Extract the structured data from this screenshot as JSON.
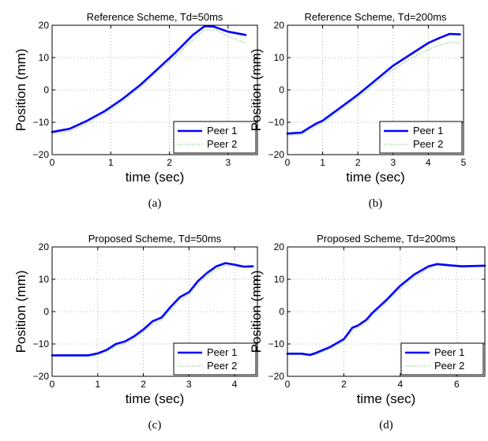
{
  "colors": {
    "peer1": "#0000ff",
    "peer2": "#6bbf6b",
    "grid": "#9a9a9a"
  },
  "legend": {
    "peer1": "Peer 1",
    "peer2": "Peer 2",
    "placement": "bottom-right"
  },
  "chart_data": [
    {
      "type": "line",
      "caption": "(a)",
      "title": "Reference Scheme, Td=50ms",
      "xlabel": "time (sec)",
      "ylabel": "Position (mm)",
      "xlim": [
        0,
        3.5
      ],
      "ylim": [
        -20,
        20
      ],
      "xticks": [
        0,
        1,
        2,
        3
      ],
      "yticks": [
        -20,
        -10,
        0,
        10,
        20
      ],
      "grid": true,
      "series": [
        {
          "name": "Peer 1",
          "x": [
            0,
            0.3,
            0.6,
            0.9,
            1.2,
            1.5,
            1.8,
            2.1,
            2.4,
            2.6,
            2.75,
            3.0,
            3.3
          ],
          "y": [
            -13,
            -12,
            -9.5,
            -6.5,
            -2.8,
            1.5,
            6.5,
            11.5,
            17,
            19.7,
            19.6,
            18,
            17
          ]
        },
        {
          "name": "Peer 2",
          "x": [
            0,
            0.3,
            0.6,
            0.9,
            1.2,
            1.5,
            1.8,
            2.1,
            2.4,
            2.6,
            2.8,
            3.0,
            3.3
          ],
          "y": [
            -13.5,
            -12.8,
            -10.3,
            -7.3,
            -3.6,
            0.7,
            5.7,
            10.5,
            15.5,
            18.5,
            18.5,
            16.5,
            14.5
          ]
        }
      ]
    },
    {
      "type": "line",
      "caption": "(b)",
      "title": "Reference Scheme, Td=200ms",
      "xlabel": "time (sec)",
      "ylabel": "Position (mm)",
      "xlim": [
        0,
        5
      ],
      "ylim": [
        -20,
        20
      ],
      "xticks": [
        0,
        1,
        2,
        3,
        4,
        5
      ],
      "yticks": [
        -20,
        -10,
        0,
        10,
        20
      ],
      "grid": true,
      "series": [
        {
          "name": "Peer 1",
          "x": [
            0,
            0.4,
            0.6,
            0.8,
            1.0,
            1.5,
            2.0,
            2.5,
            3.0,
            3.5,
            4.0,
            4.3,
            4.6,
            4.9
          ],
          "y": [
            -13.5,
            -13.2,
            -11.8,
            -10.5,
            -9.5,
            -5.5,
            -1.5,
            3,
            7.5,
            11,
            14.5,
            16,
            17.3,
            17.2
          ]
        },
        {
          "name": "Peer 2",
          "x": [
            0,
            0.4,
            0.6,
            0.8,
            1.0,
            1.5,
            2.0,
            2.5,
            3.0,
            3.5,
            4.0,
            4.3,
            4.6,
            4.9
          ],
          "y": [
            -14,
            -13.8,
            -12.5,
            -11.2,
            -10.3,
            -6.3,
            -2.3,
            2,
            6.3,
            9.8,
            12.5,
            13.8,
            14.7,
            14.6
          ]
        }
      ]
    },
    {
      "type": "line",
      "caption": "(c)",
      "title": "Proposed Scheme, Td=50ms",
      "xlabel": "time (sec)",
      "ylabel": "Position (mm)",
      "xlim": [
        0,
        4.5
      ],
      "ylim": [
        -20,
        20
      ],
      "xticks": [
        0,
        1,
        2,
        3,
        4
      ],
      "yticks": [
        -20,
        -10,
        0,
        10,
        20
      ],
      "grid": true,
      "series": [
        {
          "name": "Peer 1",
          "x": [
            0,
            0.8,
            1.0,
            1.2,
            1.4,
            1.6,
            1.8,
            2.0,
            2.2,
            2.4,
            2.6,
            2.8,
            3.0,
            3.2,
            3.4,
            3.6,
            3.8,
            4.0,
            4.2,
            4.4
          ],
          "y": [
            -13.5,
            -13.5,
            -12.9,
            -11.8,
            -10,
            -9.2,
            -7.6,
            -5.5,
            -3,
            -1.8,
            1.5,
            4.5,
            6,
            9.5,
            12,
            14,
            15,
            14.5,
            13.9,
            14
          ]
        },
        {
          "name": "Peer 2",
          "x": [
            0,
            0.8,
            1.0,
            1.2,
            1.4,
            1.6,
            1.8,
            2.0,
            2.2,
            2.4,
            2.6,
            2.8,
            3.0,
            3.2,
            3.4,
            3.6,
            3.8,
            4.0,
            4.2,
            4.4
          ],
          "y": [
            -13.8,
            -13.8,
            -13.4,
            -12.4,
            -10.7,
            -9.9,
            -8.4,
            -6.3,
            -3.8,
            -2.6,
            0.6,
            3.6,
            5.2,
            8.6,
            11.1,
            13.1,
            14.3,
            14,
            13.6,
            13.7
          ]
        }
      ]
    },
    {
      "type": "line",
      "caption": "(d)",
      "title": "Proposed Scheme, Td=200ms",
      "xlabel": "time (sec)",
      "ylabel": "Position (mm)",
      "xlim": [
        0,
        7
      ],
      "ylim": [
        -20,
        20
      ],
      "xticks": [
        0,
        2,
        4,
        6
      ],
      "yticks": [
        -20,
        -10,
        0,
        10,
        20
      ],
      "grid": true,
      "series": [
        {
          "name": "Peer 1",
          "x": [
            0,
            0.5,
            0.8,
            1.0,
            1.5,
            2.0,
            2.3,
            2.5,
            2.8,
            3.0,
            3.5,
            4.0,
            4.5,
            5.0,
            5.3,
            5.8,
            6.2,
            7.0
          ],
          "y": [
            -13,
            -13,
            -13.4,
            -12.8,
            -11,
            -8.5,
            -5,
            -4.3,
            -2.5,
            -0.5,
            3.5,
            8,
            11.5,
            14,
            14.7,
            14.3,
            14,
            14.2
          ]
        },
        {
          "name": "Peer 2",
          "x": [
            0,
            0.5,
            0.8,
            1.0,
            1.5,
            2.0,
            2.3,
            2.5,
            2.8,
            3.0,
            3.5,
            4.0,
            4.5,
            5.0,
            5.3,
            5.8,
            6.2,
            7.0
          ],
          "y": [
            -13.3,
            -13.3,
            -13.7,
            -13.3,
            -11.6,
            -9.2,
            -5.8,
            -5,
            -3.2,
            -1.3,
            2.7,
            7.1,
            10.6,
            13.3,
            14.3,
            14,
            13.8,
            14
          ]
        }
      ]
    }
  ]
}
